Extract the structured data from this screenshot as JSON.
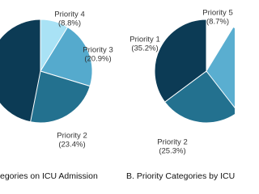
{
  "chart_data": [
    {
      "type": "pie",
      "title": "egories on ICU Admission",
      "categories": [
        "Priority 4",
        "Priority 3",
        "Priority 2"
      ],
      "values": [
        8.8,
        20.9,
        23.4
      ],
      "value_labels": [
        "(8.8%)",
        "(20.9%)",
        "(23.4%)"
      ],
      "colors": [
        "#a9e2f5",
        "#55aacd",
        "#23718f"
      ]
    },
    {
      "type": "pie",
      "title": "B. Priority Categories by ICU",
      "categories": [
        "Priority 1",
        "Priority 2",
        "Priority 5"
      ],
      "values": [
        35.2,
        25.3,
        8.7
      ],
      "value_labels": [
        "(35.2%)",
        "(25.3%)",
        "(8.7%)"
      ],
      "colors": [
        "#0c3b55",
        "#23718f",
        "#ffffff"
      ]
    }
  ]
}
